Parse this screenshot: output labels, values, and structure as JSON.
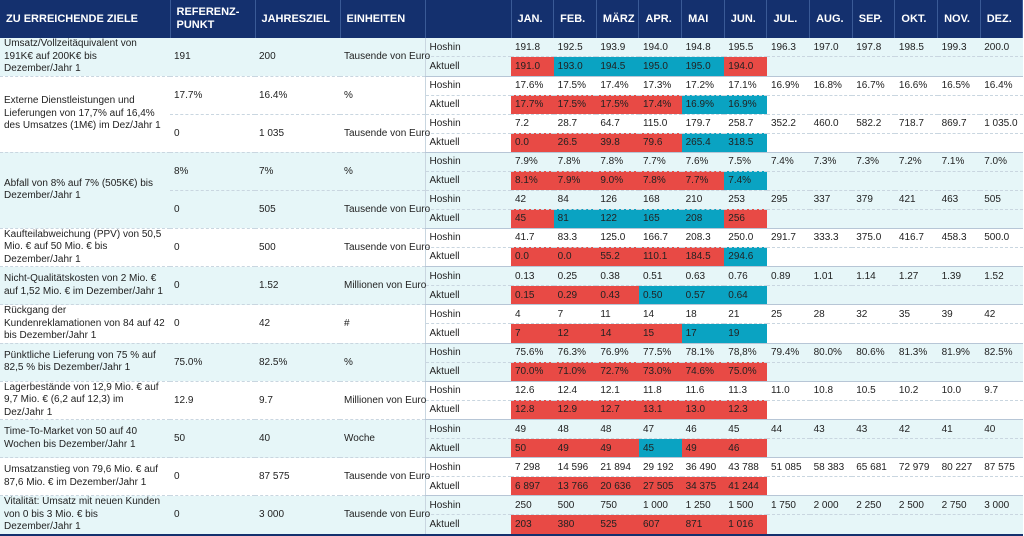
{
  "header": {
    "goal": "ZU ERREICHENDE ZIELE",
    "reference": "REFERENZ-PUNKT",
    "annual_target": "JAHRESZIEL",
    "units": "EINHEITEN",
    "months": [
      "JAN.",
      "FEB.",
      "MÄRZ",
      "APR.",
      "MAI",
      "JUN.",
      "JUL.",
      "AUG.",
      "SEP.",
      "OKT.",
      "NOV.",
      "DEZ."
    ]
  },
  "row_labels": {
    "plan": "Hoshin",
    "actual": "Aktuell"
  },
  "colors": {
    "header": "#14306e",
    "miss": "#e84a45",
    "hit": "#0aa3c2",
    "band": "#e6f6f8"
  },
  "goals": [
    {
      "text": "Umsatz/Vollzeitäquivalent von 191K€ auf 200K€ bis Dezember/Jahr 1",
      "metrics": [
        {
          "ref": "191",
          "target": "200",
          "unit": "Tausende von Euro",
          "hoshin": [
            "191.8",
            "192.5",
            "193.9",
            "194.0",
            "194.8",
            "195.5",
            "196.3",
            "197.0",
            "197.8",
            "198.5",
            "199.3",
            "200.0"
          ],
          "actual": [
            "191.0",
            "193.0",
            "194.5",
            "195.0",
            "195.0",
            "194.0"
          ],
          "status": [
            "miss",
            "hit",
            "hit",
            "hit",
            "hit",
            "miss"
          ]
        }
      ]
    },
    {
      "text": "Externe Dienstleistungen und Lieferungen von 17,7% auf 16,4% des Umsatzes (1M€) im Dez/Jahr 1",
      "metrics": [
        {
          "ref": "17.7%",
          "target": "16.4%",
          "unit": "%",
          "hoshin": [
            "17.6%",
            "17.5%",
            "17.4%",
            "17.3%",
            "17.2%",
            "17.1%",
            "16.9%",
            "16.8%",
            "16.7%",
            "16.6%",
            "16.5%",
            "16.4%"
          ],
          "actual": [
            "17.7%",
            "17.5%",
            "17.5%",
            "17.4%",
            "16.9%",
            "16.9%"
          ],
          "status": [
            "miss",
            "miss",
            "miss",
            "miss",
            "hit",
            "hit"
          ]
        },
        {
          "ref": "0",
          "target": "1 035",
          "unit": "Tausende von Euro",
          "hoshin": [
            "7.2",
            "28.7",
            "64.7",
            "115.0",
            "179.7",
            "258.7",
            "352.2",
            "460.0",
            "582.2",
            "718.7",
            "869.7",
            "1 035.0"
          ],
          "actual": [
            "0.0",
            "26.5",
            "39.8",
            "79.6",
            "265.4",
            "318.5"
          ],
          "status": [
            "miss",
            "miss",
            "miss",
            "miss",
            "hit",
            "hit"
          ]
        }
      ]
    },
    {
      "text": "Abfall von 8% auf 7% (505K€) bis Dezember/Jahr 1",
      "metrics": [
        {
          "ref": "8%",
          "target": "7%",
          "unit": "%",
          "hoshin": [
            "7.9%",
            "7.8%",
            "7.8%",
            "7.7%",
            "7.6%",
            "7.5%",
            "7.4%",
            "7.3%",
            "7.3%",
            "7.2%",
            "7.1%",
            "7.0%"
          ],
          "actual": [
            "8.1%",
            "7.9%",
            "9.0%",
            "7.8%",
            "7.7%",
            "7.4%"
          ],
          "status": [
            "miss",
            "miss",
            "miss",
            "miss",
            "miss",
            "hit"
          ]
        },
        {
          "ref": "0",
          "target": "505",
          "unit": "Tausende von Euro",
          "hoshin": [
            "42",
            "84",
            "126",
            "168",
            "210",
            "253",
            "295",
            "337",
            "379",
            "421",
            "463",
            "505"
          ],
          "actual": [
            "45",
            "81",
            "122",
            "165",
            "208",
            "256"
          ],
          "status": [
            "miss",
            "hit",
            "hit",
            "hit",
            "hit",
            "miss"
          ]
        }
      ]
    },
    {
      "text": "Kaufteilabweichung (PPV) von 50,5 Mio. € auf 50 Mio. € bis Dezember/Jahr 1",
      "metrics": [
        {
          "ref": "0",
          "target": "500",
          "unit": "Tausende von Euro",
          "hoshin": [
            "41.7",
            "83.3",
            "125.0",
            "166.7",
            "208.3",
            "250.0",
            "291.7",
            "333.3",
            "375.0",
            "416.7",
            "458.3",
            "500.0"
          ],
          "actual": [
            "0.0",
            "0.0",
            "55.2",
            "110.1",
            "184.5",
            "294.6"
          ],
          "status": [
            "miss",
            "miss",
            "miss",
            "miss",
            "miss",
            "hit"
          ]
        }
      ]
    },
    {
      "text": "Nicht-Qualitätskosten von 2 Mio. € auf 1,52 Mio. € im Dezember/Jahr 1",
      "metrics": [
        {
          "ref": "0",
          "target": "1.52",
          "unit": "Millionen von Euro",
          "hoshin": [
            "0.13",
            "0.25",
            "0.38",
            "0.51",
            "0.63",
            "0.76",
            "0.89",
            "1.01",
            "1.14",
            "1.27",
            "1.39",
            "1.52"
          ],
          "actual": [
            "0.15",
            "0.29",
            "0.43",
            "0.50",
            "0.57",
            "0.64"
          ],
          "status": [
            "miss",
            "miss",
            "miss",
            "hit",
            "hit",
            "hit"
          ]
        }
      ]
    },
    {
      "text": "Rückgang der Kundenreklamationen von 84 auf 42 bis Dezember/Jahr 1",
      "metrics": [
        {
          "ref": "0",
          "target": "42",
          "unit": "#",
          "hoshin": [
            "4",
            "7",
            "11",
            "14",
            "18",
            "21",
            "25",
            "28",
            "32",
            "35",
            "39",
            "42"
          ],
          "actual": [
            "7",
            "12",
            "14",
            "15",
            "17",
            "19"
          ],
          "status": [
            "miss",
            "miss",
            "miss",
            "miss",
            "hit",
            "hit"
          ]
        }
      ]
    },
    {
      "text": "Pünktliche Lieferung von 75 % auf 82,5 % bis Dezember/Jahr 1",
      "metrics": [
        {
          "ref": "75.0%",
          "target": "82.5%",
          "unit": "%",
          "hoshin": [
            "75.6%",
            "76.3%",
            "76.9%",
            "77.5%",
            "78.1%",
            "78,8%",
            "79.4%",
            "80.0%",
            "80.6%",
            "81.3%",
            "81.9%",
            "82.5%"
          ],
          "actual": [
            "70.0%",
            "71.0%",
            "72.7%",
            "73.0%",
            "74.6%",
            "75.0%"
          ],
          "status": [
            "miss",
            "miss",
            "miss",
            "miss",
            "miss",
            "miss"
          ]
        }
      ]
    },
    {
      "text": "Lagerbestände von 12,9 Mio. € auf 9,7 Mio. € (6,2 auf 12,3) im Dez/Jahr 1",
      "metrics": [
        {
          "ref": "12.9",
          "target": "9.7",
          "unit": "Millionen von Euro",
          "hoshin": [
            "12.6",
            "12.4",
            "12.1",
            "11.8",
            "11.6",
            "11.3",
            "11.0",
            "10.8",
            "10.5",
            "10.2",
            "10.0",
            "9.7"
          ],
          "actual": [
            "12.8",
            "12.9",
            "12.7",
            "13.1",
            "13.0",
            "12.3"
          ],
          "status": [
            "miss",
            "miss",
            "miss",
            "miss",
            "miss",
            "miss"
          ]
        }
      ]
    },
    {
      "text": "Time-To-Market von 50 auf 40 Wochen bis Dezember/Jahr 1",
      "metrics": [
        {
          "ref": "50",
          "target": "40",
          "unit": "Woche",
          "hoshin": [
            "49",
            "48",
            "48",
            "47",
            "46",
            "45",
            "44",
            "43",
            "43",
            "42",
            "41",
            "40"
          ],
          "actual": [
            "50",
            "49",
            "49",
            "45",
            "49",
            "46"
          ],
          "status": [
            "miss",
            "miss",
            "miss",
            "hit",
            "miss",
            "miss"
          ]
        }
      ]
    },
    {
      "text": "Umsatzanstieg von 79,6 Mio. € auf 87,6 Mio. € im Dezember/Jahr 1",
      "metrics": [
        {
          "ref": "0",
          "target": "87 575",
          "unit": "Tausende von Euro",
          "hoshin": [
            "7 298",
            "14 596",
            "21 894",
            "29 192",
            "36 490",
            "43 788",
            "51 085",
            "58 383",
            "65 681",
            "72 979",
            "80 227",
            "87 575"
          ],
          "actual": [
            "6 897",
            "13 766",
            "20 636",
            "27 505",
            "34 375",
            "41 244"
          ],
          "status": [
            "miss",
            "miss",
            "miss",
            "miss",
            "miss",
            "miss"
          ]
        }
      ]
    },
    {
      "text": "Vitalität: Umsatz mit neuen Kunden von 0 bis 3 Mio. € bis Dezember/Jahr 1",
      "metrics": [
        {
          "ref": "0",
          "target": "3 000",
          "unit": "Tausende von Euro",
          "hoshin": [
            "250",
            "500",
            "750",
            "1 000",
            "1 250",
            "1 500",
            "1 750",
            "2 000",
            "2 250",
            "2 500",
            "2 750",
            "3 000"
          ],
          "actual": [
            "203",
            "380",
            "525",
            "607",
            "871",
            "1 016"
          ],
          "status": [
            "miss",
            "miss",
            "miss",
            "miss",
            "miss",
            "miss"
          ]
        }
      ]
    }
  ]
}
